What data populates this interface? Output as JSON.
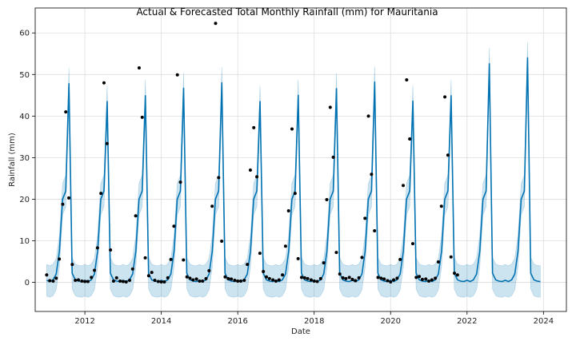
{
  "chart_data": {
    "type": "line",
    "title": "Actual & Forecasted Total Monthly Rainfall (mm) for Mauritania",
    "xlabel": "Date",
    "ylabel": "Rainfall (mm)",
    "xlim": [
      2010.7,
      2024.6
    ],
    "ylim": [
      -7,
      66
    ],
    "x_ticks": [
      2012,
      2014,
      2016,
      2018,
      2020,
      2022,
      2024
    ],
    "y_ticks": [
      0,
      10,
      20,
      30,
      40,
      50,
      60
    ],
    "grid": true,
    "colors": {
      "forecast": "#0072B2",
      "band": "#0072B2",
      "actual": "#000000"
    },
    "actual": [
      [
        2011.0,
        1.8
      ],
      [
        2011.08,
        0.4
      ],
      [
        2011.17,
        0.3
      ],
      [
        2011.25,
        1.0
      ],
      [
        2011.33,
        5.6
      ],
      [
        2011.42,
        18.8
      ],
      [
        2011.5,
        41.0
      ],
      [
        2011.58,
        20.3
      ],
      [
        2011.67,
        4.3
      ],
      [
        2011.75,
        0.5
      ],
      [
        2011.83,
        0.6
      ],
      [
        2011.92,
        0.3
      ],
      [
        2012.0,
        0.2
      ],
      [
        2012.08,
        0.2
      ],
      [
        2012.17,
        1.2
      ],
      [
        2012.25,
        2.9
      ],
      [
        2012.33,
        8.3
      ],
      [
        2012.42,
        21.4
      ],
      [
        2012.5,
        48.0
      ],
      [
        2012.58,
        33.4
      ],
      [
        2012.67,
        7.8
      ],
      [
        2012.75,
        0.3
      ],
      [
        2012.83,
        1.1
      ],
      [
        2012.92,
        0.3
      ],
      [
        2013.0,
        0.2
      ],
      [
        2013.08,
        0.1
      ],
      [
        2013.17,
        0.5
      ],
      [
        2013.25,
        3.2
      ],
      [
        2013.33,
        16.0
      ],
      [
        2013.42,
        51.6
      ],
      [
        2013.5,
        39.7
      ],
      [
        2013.58,
        5.9
      ],
      [
        2013.67,
        1.6
      ],
      [
        2013.75,
        2.4
      ],
      [
        2013.83,
        0.5
      ],
      [
        2013.92,
        0.2
      ],
      [
        2014.0,
        0.1
      ],
      [
        2014.08,
        0.1
      ],
      [
        2014.17,
        1.1
      ],
      [
        2014.25,
        5.5
      ],
      [
        2014.33,
        13.5
      ],
      [
        2014.42,
        49.9
      ],
      [
        2014.5,
        24.1
      ],
      [
        2014.58,
        5.4
      ],
      [
        2014.67,
        1.3
      ],
      [
        2014.75,
        1.0
      ],
      [
        2014.83,
        0.6
      ],
      [
        2014.92,
        0.8
      ],
      [
        2015.0,
        0.3
      ],
      [
        2015.08,
        0.3
      ],
      [
        2015.17,
        0.9
      ],
      [
        2015.25,
        2.8
      ],
      [
        2015.33,
        18.3
      ],
      [
        2015.42,
        62.3
      ],
      [
        2015.5,
        25.2
      ],
      [
        2015.58,
        9.9
      ],
      [
        2015.67,
        1.3
      ],
      [
        2015.75,
        0.9
      ],
      [
        2015.83,
        0.8
      ],
      [
        2015.92,
        0.5
      ],
      [
        2016.0,
        0.3
      ],
      [
        2016.08,
        0.3
      ],
      [
        2016.17,
        0.5
      ],
      [
        2016.25,
        4.3
      ],
      [
        2016.33,
        27.0
      ],
      [
        2016.42,
        37.2
      ],
      [
        2016.5,
        25.4
      ],
      [
        2016.58,
        7.0
      ],
      [
        2016.67,
        2.6
      ],
      [
        2016.75,
        1.3
      ],
      [
        2016.83,
        0.9
      ],
      [
        2016.92,
        0.6
      ],
      [
        2017.0,
        0.3
      ],
      [
        2017.08,
        0.6
      ],
      [
        2017.17,
        1.8
      ],
      [
        2017.25,
        8.7
      ],
      [
        2017.33,
        17.2
      ],
      [
        2017.42,
        36.9
      ],
      [
        2017.5,
        21.4
      ],
      [
        2017.58,
        5.7
      ],
      [
        2017.67,
        1.2
      ],
      [
        2017.75,
        1.1
      ],
      [
        2017.83,
        0.9
      ],
      [
        2017.92,
        0.6
      ],
      [
        2018.0,
        0.3
      ],
      [
        2018.08,
        0.2
      ],
      [
        2018.17,
        0.9
      ],
      [
        2018.25,
        4.7
      ],
      [
        2018.33,
        19.9
      ],
      [
        2018.42,
        42.1
      ],
      [
        2018.5,
        30.1
      ],
      [
        2018.58,
        7.2
      ],
      [
        2018.67,
        2.0
      ],
      [
        2018.75,
        1.1
      ],
      [
        2018.83,
        0.9
      ],
      [
        2018.92,
        1.2
      ],
      [
        2019.0,
        0.7
      ],
      [
        2019.08,
        0.4
      ],
      [
        2019.17,
        1.1
      ],
      [
        2019.25,
        6.0
      ],
      [
        2019.33,
        15.4
      ],
      [
        2019.42,
        40.0
      ],
      [
        2019.5,
        26.0
      ],
      [
        2019.58,
        12.4
      ],
      [
        2019.67,
        1.2
      ],
      [
        2019.75,
        1.0
      ],
      [
        2019.83,
        0.8
      ],
      [
        2019.92,
        0.4
      ],
      [
        2020.0,
        0.1
      ],
      [
        2020.08,
        0.6
      ],
      [
        2020.17,
        1.0
      ],
      [
        2020.25,
        5.5
      ],
      [
        2020.33,
        23.3
      ],
      [
        2020.42,
        48.7
      ],
      [
        2020.5,
        34.5
      ],
      [
        2020.58,
        9.3
      ],
      [
        2020.67,
        1.2
      ],
      [
        2020.75,
        1.4
      ],
      [
        2020.83,
        0.7
      ],
      [
        2020.92,
        0.8
      ],
      [
        2021.0,
        0.3
      ],
      [
        2021.08,
        0.6
      ],
      [
        2021.17,
        1.0
      ],
      [
        2021.25,
        4.9
      ],
      [
        2021.33,
        18.3
      ],
      [
        2021.42,
        44.6
      ],
      [
        2021.5,
        30.6
      ],
      [
        2021.58,
        6.1
      ],
      [
        2021.67,
        2.2
      ],
      [
        2021.75,
        1.8
      ]
    ],
    "forecast": {
      "baseline": [
        0.5,
        0.2,
        0.6,
        2.0,
        7.5,
        20.0,
        22.0,
        9.0,
        2.2,
        0.6,
        0.3,
        0.2
      ],
      "peaks": [
        [
          2011,
          47.8
        ],
        [
          2012,
          43.5
        ],
        [
          2013,
          44.9
        ],
        [
          2014,
          46.7
        ],
        [
          2015,
          48.0
        ],
        [
          2016,
          43.5
        ],
        [
          2017,
          45.0
        ],
        [
          2018,
          46.6
        ],
        [
          2019,
          48.2
        ],
        [
          2020,
          43.6
        ],
        [
          2021,
          44.9
        ],
        [
          2022,
          52.6
        ],
        [
          2023,
          54.0
        ]
      ],
      "start": 2011.0,
      "end": 2023.92,
      "band_half_width": 3.8
    }
  }
}
